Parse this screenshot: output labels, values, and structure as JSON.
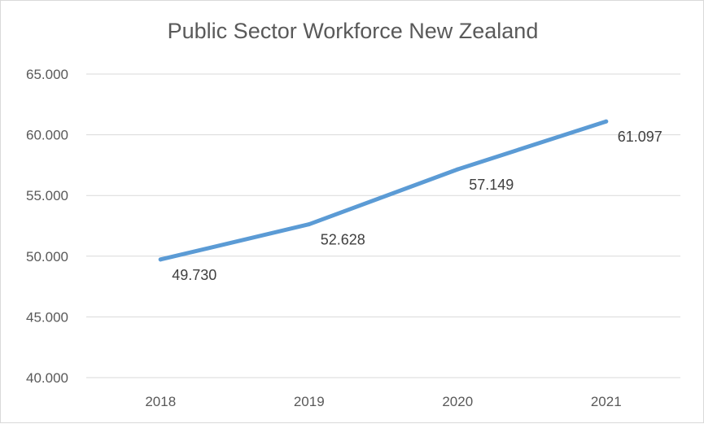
{
  "chart_data": {
    "type": "line",
    "title": "Public Sector Workforce New Zealand",
    "categories": [
      "2018",
      "2019",
      "2020",
      "2021"
    ],
    "series": [
      {
        "values": [
          49730,
          52628,
          57149,
          61097
        ],
        "labels": [
          "49.730",
          "52.628",
          "57.149",
          "61.097"
        ]
      }
    ],
    "ylim": [
      40000,
      65000
    ],
    "yticks": [
      40000,
      45000,
      50000,
      55000,
      60000,
      65000
    ],
    "ytick_labels": [
      "40.000",
      "45.000",
      "50.000",
      "55.000",
      "60.000",
      "65.000"
    ],
    "xlabel": "",
    "ylabel": "",
    "grid": true,
    "legend": "none",
    "line_color": "#5b9bd5",
    "grid_color": "#d9d9d9"
  }
}
